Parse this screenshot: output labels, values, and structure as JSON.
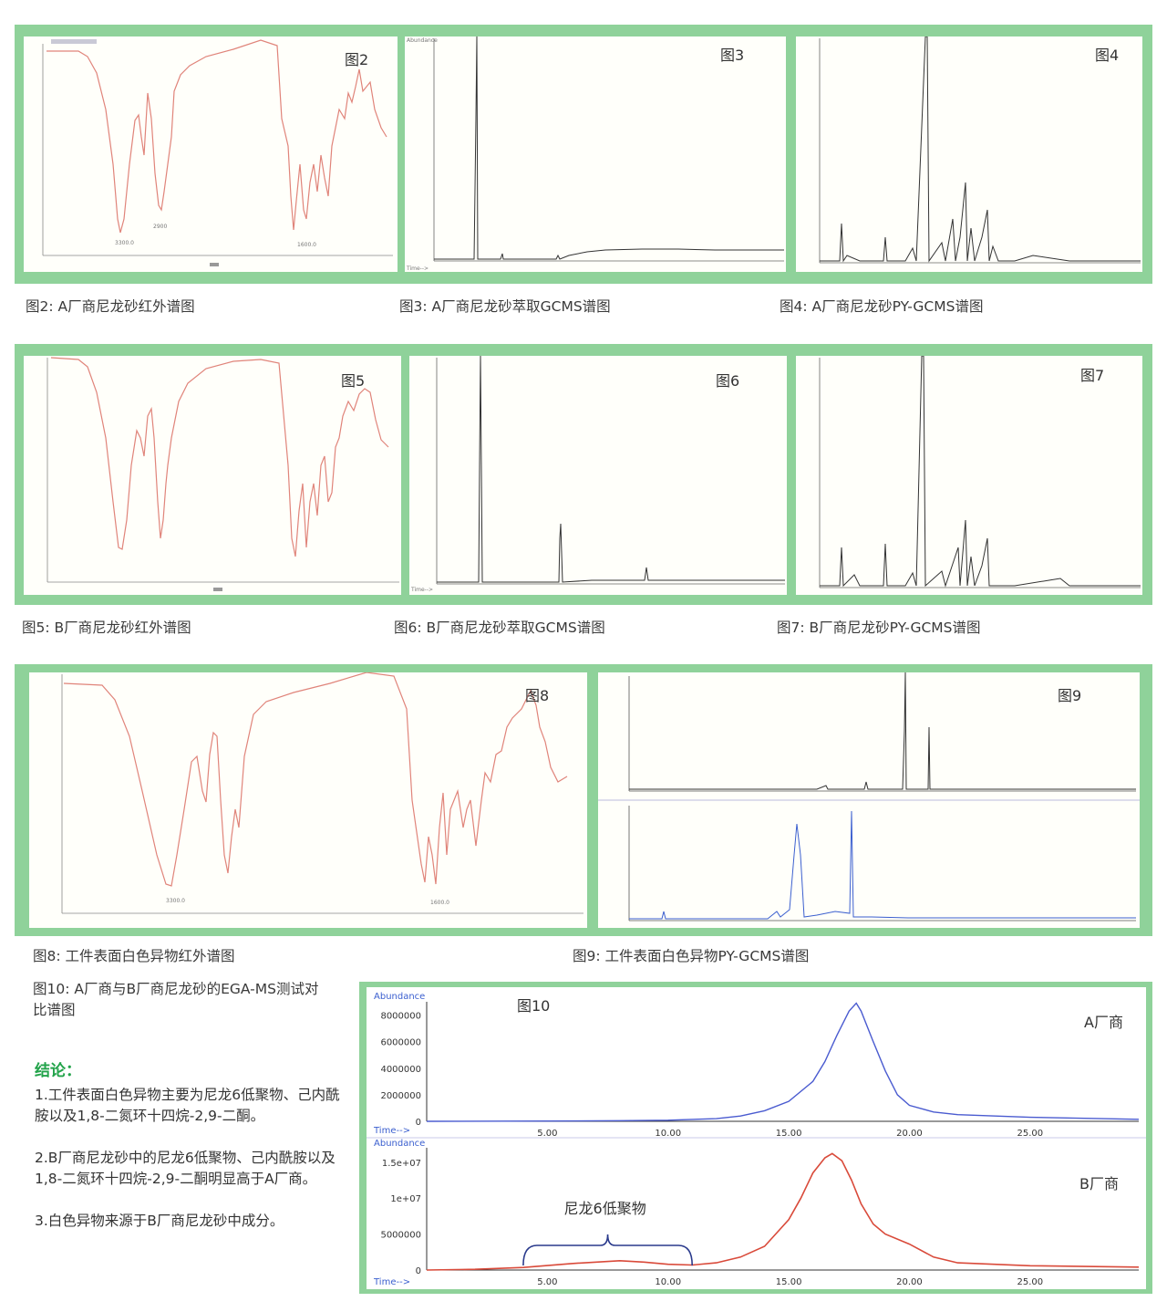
{
  "row1": {
    "fig2": {
      "label": "图2",
      "caption": "图2: A厂商尼龙砂红外谱图"
    },
    "fig3": {
      "label": "图3",
      "caption": "图3: A厂商尼龙砂萃取GCMS谱图"
    },
    "fig4": {
      "label": "图4",
      "caption": "图4: A厂商尼龙砂PY-GCMS谱图"
    }
  },
  "row2": {
    "fig5": {
      "label": "图5",
      "caption": "图5: B厂商尼龙砂红外谱图"
    },
    "fig6": {
      "label": "图6",
      "caption": "图6: B厂商尼龙砂萃取GCMS谱图"
    },
    "fig7": {
      "label": "图7",
      "caption": "图7: B厂商尼龙砂PY-GCMS谱图"
    }
  },
  "row3": {
    "fig8": {
      "label": "图8",
      "caption": "图8: 工件表面白色异物红外谱图"
    },
    "fig9": {
      "label": "图9",
      "caption": "图9: 工件表面白色异物PY-GCMS谱图"
    }
  },
  "fig10": {
    "caption": "图10: A厂商与B厂商尼龙砂的EGA-MS测试对比谱图",
    "label": "图10",
    "abundance_label": "Abundance",
    "time_label": "Time-->",
    "series_a_label": "A厂商",
    "series_b_label": "B厂商",
    "annotation": "尼龙6低聚物",
    "top_y_ticks": [
      "8000000",
      "6000000",
      "4000000",
      "2000000",
      "0"
    ],
    "bottom_y_ticks": [
      "1.5e+07",
      "1e+07",
      "5000000",
      "0"
    ],
    "x_ticks": [
      "5.00",
      "10.00",
      "15.00",
      "20.00",
      "25.00"
    ]
  },
  "conclusions": {
    "title": "结论：",
    "items": [
      "1.工件表面白色异物主要为尼龙6低聚物、己内酰胺以及1,8-二氮环十四烷-2,9-二酮。",
      "2.B厂商尼龙砂中的尼龙6低聚物、己内酰胺以及1,8-二氮环十四烷-2,9-二酮明显高于A厂商。",
      "3.白色异物来源于B厂商尼龙砂中成分。"
    ]
  },
  "chart_data": [
    {
      "type": "line",
      "title": "图10",
      "panel": "A厂商",
      "xlabel": "Time-->",
      "ylabel": "Abundance",
      "xlim": [
        0,
        29.5
      ],
      "ylim": [
        0,
        9000000
      ],
      "x": [
        0,
        5,
        8,
        10,
        12,
        13,
        14,
        15,
        16,
        16.5,
        17,
        17.5,
        17.8,
        18,
        18.5,
        19,
        19.5,
        20,
        21,
        22,
        25,
        29.5
      ],
      "series": [
        {
          "name": "A厂商",
          "color": "#4a5bd0",
          "values": [
            0,
            20000,
            50000,
            80000,
            200000,
            400000,
            800000,
            1500000,
            3000000,
            4500000,
            6500000,
            8300000,
            8900000,
            8300000,
            6000000,
            3800000,
            2000000,
            1200000,
            700000,
            500000,
            300000,
            150000
          ]
        }
      ]
    },
    {
      "type": "line",
      "title": "图10",
      "panel": "B厂商",
      "xlabel": "Time-->",
      "ylabel": "Abundance",
      "xlim": [
        0,
        29.5
      ],
      "ylim": [
        0,
        17000000
      ],
      "x": [
        0,
        2,
        4,
        6,
        8,
        9,
        10,
        11,
        12,
        13,
        14,
        15,
        15.5,
        16,
        16.5,
        16.8,
        17.2,
        17.6,
        18,
        18.5,
        19,
        20,
        21,
        22,
        25,
        29.5
      ],
      "series": [
        {
          "name": "B厂商",
          "color": "#d94a3a",
          "values": [
            0,
            100000,
            350000,
            900000,
            1300000,
            1100000,
            800000,
            700000,
            1000000,
            1800000,
            3300000,
            7000000,
            10000000,
            13500000,
            15600000,
            16200000,
            15200000,
            12500000,
            9200000,
            6400000,
            5000000,
            3600000,
            1800000,
            1000000,
            600000,
            400000
          ]
        }
      ],
      "annotation": "尼龙6低聚物",
      "annotation_range": [
        4,
        11
      ]
    }
  ]
}
